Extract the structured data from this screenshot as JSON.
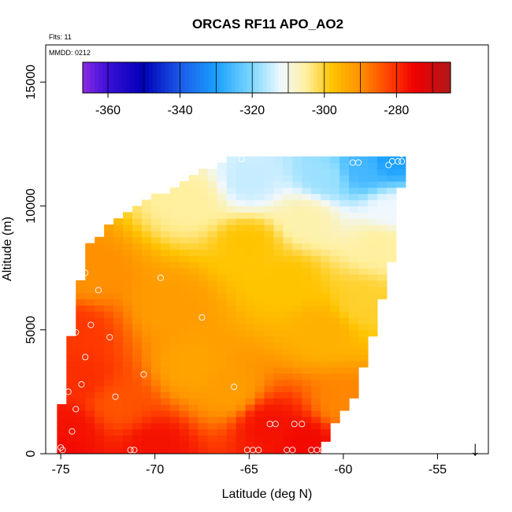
{
  "chart_data": {
    "type": "heatmap",
    "title": "ORCAS RF11 APO_AO2",
    "annotations": {
      "flights": "Flts: 11",
      "date": "MMDD: 0212"
    },
    "xlabel": "Latitude (deg N)",
    "ylabel": "Altitude (m)",
    "xlim": [
      -75.8,
      -52.3
    ],
    "ylim": [
      0,
      16500
    ],
    "x_ticks": [
      -75,
      -70,
      -65,
      -60,
      -55
    ],
    "x_tick_labels": [
      "-75",
      "-70",
      "-65",
      "-60",
      "-55"
    ],
    "y_ticks": [
      0,
      5000,
      10000,
      15000
    ],
    "y_tick_labels": [
      "0",
      "5000",
      "10000",
      "15000"
    ],
    "colorbar": {
      "position": "top-inside",
      "range": [
        -367,
        -265
      ],
      "ticks": [
        -360,
        -340,
        -320,
        -300,
        -280
      ],
      "tick_labels": [
        "-360",
        "-340",
        "-320",
        "-300",
        "-280"
      ],
      "stops": [
        {
          "v": -367,
          "color": "#8a2be2"
        },
        {
          "v": -360,
          "color": "#3a10d8"
        },
        {
          "v": -350,
          "color": "#0000b8"
        },
        {
          "v": -340,
          "color": "#1a5ae8"
        },
        {
          "v": -330,
          "color": "#1aa0ff"
        },
        {
          "v": -320,
          "color": "#7fd8ff"
        },
        {
          "v": -312,
          "color": "#f0f8ff"
        },
        {
          "v": -305,
          "color": "#fff0a0"
        },
        {
          "v": -298,
          "color": "#ffc400"
        },
        {
          "v": -290,
          "color": "#ff9000"
        },
        {
          "v": -282,
          "color": "#ff4000"
        },
        {
          "v": -275,
          "color": "#f00000"
        },
        {
          "v": -265,
          "color": "#b01818"
        }
      ]
    },
    "field": {
      "grid_lat_step": 0.5,
      "grid_alt_step": 250,
      "envelope_top": [
        {
          "lat": -75.2,
          "alt": 800
        },
        {
          "lat": -74.2,
          "alt": 6000
        },
        {
          "lat": -73.5,
          "alt": 8500
        },
        {
          "lat": -72.0,
          "alt": 9500
        },
        {
          "lat": -68.5,
          "alt": 11000
        },
        {
          "lat": -66.0,
          "alt": 11900
        },
        {
          "lat": -64.0,
          "alt": 12000
        },
        {
          "lat": -56.9,
          "alt": 12100
        }
      ],
      "envelope_bottom": [
        {
          "lat": -75.2,
          "alt": 0
        },
        {
          "lat": -61.5,
          "alt": 0
        },
        {
          "lat": -59.5,
          "alt": 2200
        },
        {
          "lat": -58.5,
          "alt": 4500
        },
        {
          "lat": -57.5,
          "alt": 7500
        },
        {
          "lat": -57.0,
          "alt": 10200
        },
        {
          "lat": -56.9,
          "alt": 11500
        }
      ],
      "anchors": [
        {
          "lat": -75.0,
          "alt": 200,
          "v": -276
        },
        {
          "lat": -74.5,
          "alt": 1000,
          "v": -277
        },
        {
          "lat": -74.0,
          "alt": 3000,
          "v": -280
        },
        {
          "lat": -74.3,
          "alt": 5000,
          "v": -281
        },
        {
          "lat": -73.5,
          "alt": 7200,
          "v": -290
        },
        {
          "lat": -72.0,
          "alt": 2000,
          "v": -284
        },
        {
          "lat": -70.0,
          "alt": 300,
          "v": -277
        },
        {
          "lat": -69.0,
          "alt": 6000,
          "v": -292
        },
        {
          "lat": -68.0,
          "alt": 3500,
          "v": -293
        },
        {
          "lat": -66.0,
          "alt": 2500,
          "v": -292
        },
        {
          "lat": -64.0,
          "alt": 1200,
          "v": -277
        },
        {
          "lat": -62.0,
          "alt": 500,
          "v": -276
        },
        {
          "lat": -60.0,
          "alt": 2000,
          "v": -289
        },
        {
          "lat": -61.0,
          "alt": 5000,
          "v": -295
        },
        {
          "lat": -65.0,
          "alt": 8500,
          "v": -298
        },
        {
          "lat": -63.0,
          "alt": 7000,
          "v": -298
        },
        {
          "lat": -59.0,
          "alt": 6000,
          "v": -300
        },
        {
          "lat": -58.0,
          "alt": 8500,
          "v": -305
        },
        {
          "lat": -62.0,
          "alt": 9500,
          "v": -306
        },
        {
          "lat": -68.0,
          "alt": 10200,
          "v": -305
        },
        {
          "lat": -65.0,
          "alt": 11000,
          "v": -315
        },
        {
          "lat": -61.0,
          "alt": 11200,
          "v": -318
        },
        {
          "lat": -59.0,
          "alt": 11500,
          "v": -326
        },
        {
          "lat": -57.5,
          "alt": 11900,
          "v": -330
        },
        {
          "lat": -57.5,
          "alt": 9800,
          "v": -312
        }
      ]
    },
    "points": [
      {
        "lat": -75.0,
        "alt": 250
      },
      {
        "lat": -74.9,
        "alt": 150
      },
      {
        "lat": -74.4,
        "alt": 900
      },
      {
        "lat": -74.2,
        "alt": 1800
      },
      {
        "lat": -73.9,
        "alt": 2800
      },
      {
        "lat": -74.6,
        "alt": 2500
      },
      {
        "lat": -73.7,
        "alt": 3900
      },
      {
        "lat": -74.2,
        "alt": 4900
      },
      {
        "lat": -73.4,
        "alt": 5200
      },
      {
        "lat": -72.4,
        "alt": 4700
      },
      {
        "lat": -73.0,
        "alt": 6600
      },
      {
        "lat": -73.7,
        "alt": 7300
      },
      {
        "lat": -72.1,
        "alt": 2300
      },
      {
        "lat": -70.6,
        "alt": 3200
      },
      {
        "lat": -69.7,
        "alt": 7100
      },
      {
        "lat": -67.5,
        "alt": 5500
      },
      {
        "lat": -65.8,
        "alt": 2700
      },
      {
        "lat": -71.3,
        "alt": 150
      },
      {
        "lat": -71.1,
        "alt": 150
      },
      {
        "lat": -65.1,
        "alt": 150
      },
      {
        "lat": -64.8,
        "alt": 150
      },
      {
        "lat": -64.5,
        "alt": 150
      },
      {
        "lat": -63.9,
        "alt": 1200
      },
      {
        "lat": -63.6,
        "alt": 1200
      },
      {
        "lat": -62.6,
        "alt": 1200
      },
      {
        "lat": -62.2,
        "alt": 1200
      },
      {
        "lat": -63.0,
        "alt": 150
      },
      {
        "lat": -62.7,
        "alt": 150
      },
      {
        "lat": -61.7,
        "alt": 150
      },
      {
        "lat": -61.4,
        "alt": 150
      },
      {
        "lat": -61.1,
        "alt": 150
      },
      {
        "lat": -65.4,
        "alt": 11900
      },
      {
        "lat": -59.5,
        "alt": 11750
      },
      {
        "lat": -59.2,
        "alt": 11750
      },
      {
        "lat": -57.6,
        "alt": 11650
      },
      {
        "lat": -57.4,
        "alt": 11800
      },
      {
        "lat": -57.1,
        "alt": 11800
      },
      {
        "lat": -56.9,
        "alt": 12100
      },
      {
        "lat": -56.9,
        "alt": 11800
      }
    ],
    "arrow": {
      "lat": -53.0,
      "symbol": "↓"
    }
  }
}
